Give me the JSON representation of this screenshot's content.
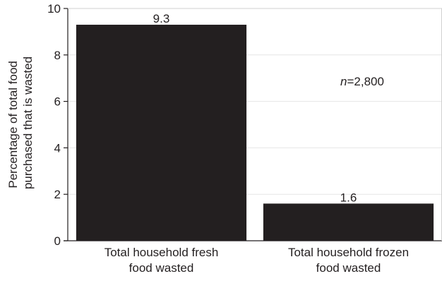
{
  "chart_data": {
    "type": "bar",
    "categories": [
      [
        "Total household fresh",
        "food wasted"
      ],
      [
        "Total household frozen",
        "food wasted"
      ]
    ],
    "values": [
      9.3,
      1.6
    ],
    "value_labels": [
      "9.3",
      "1.6"
    ],
    "title": "",
    "xlabel": "",
    "ylabel": [
      "Percentage of total food",
      "purchased that is wasted"
    ],
    "ylim": [
      0,
      10
    ],
    "yticks": [
      0,
      2,
      4,
      6,
      8,
      10
    ],
    "ytick_labels": [
      "0",
      "2",
      "4",
      "6",
      "8",
      "10"
    ],
    "annotation": {
      "italic": "n",
      "text": "=2,800"
    },
    "grid": true,
    "legend": "none",
    "colors": {
      "bar": "#231f20",
      "grid": "#e6e6e6",
      "axis": "#231f20",
      "text": "#231f20"
    }
  }
}
